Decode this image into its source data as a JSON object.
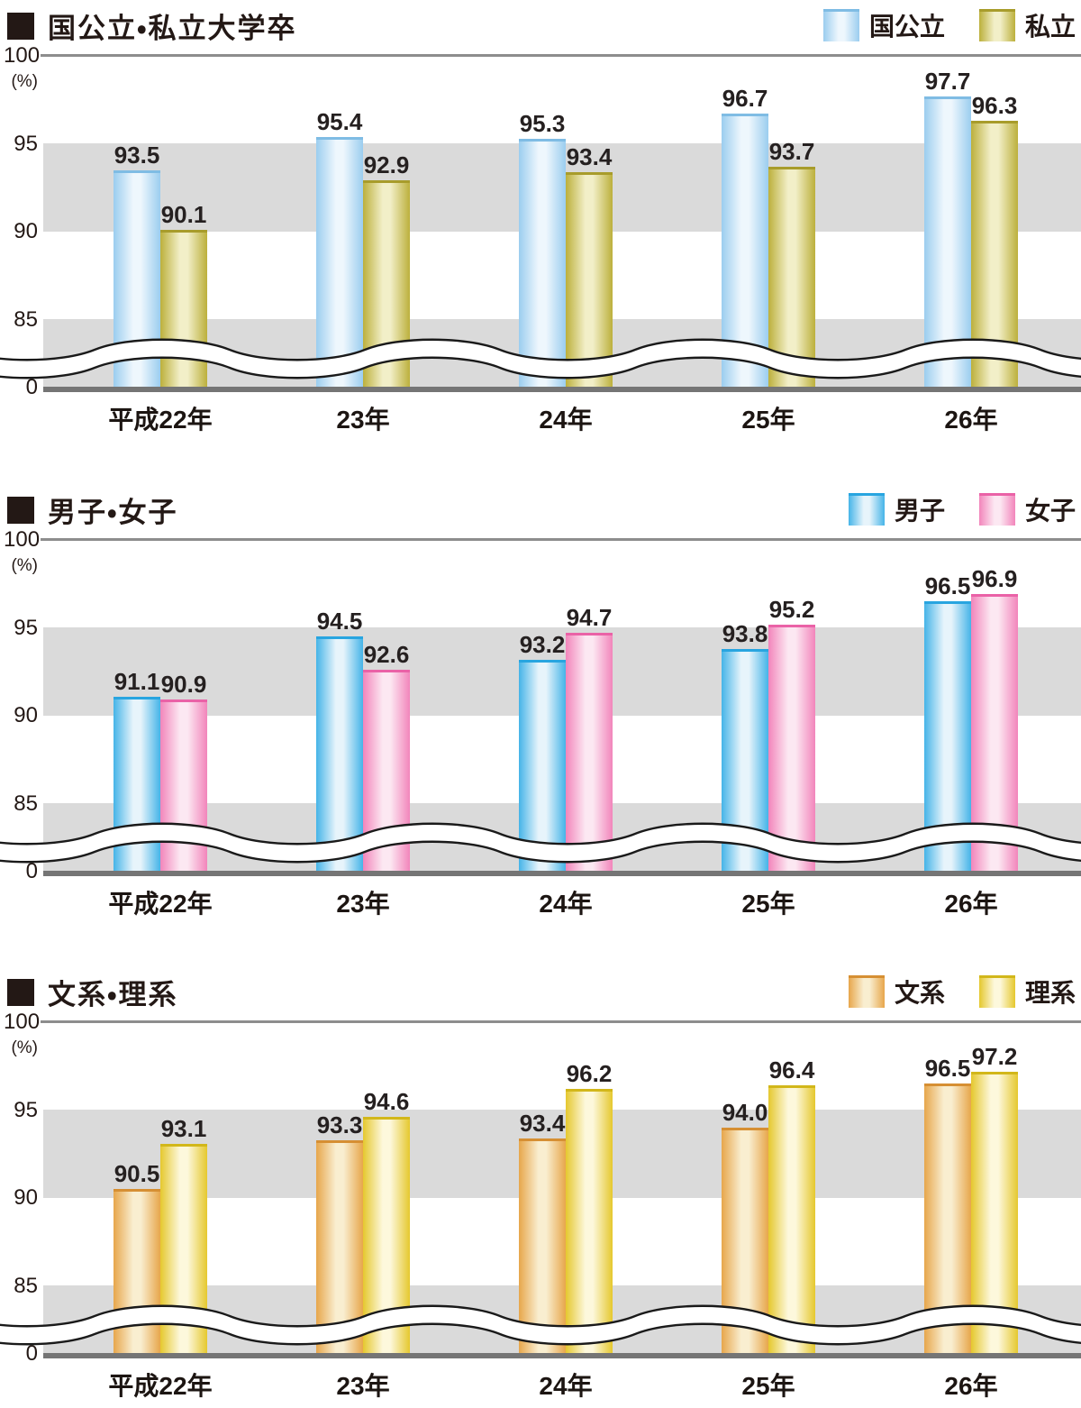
{
  "y_axis": {
    "max": "100",
    "unit": "(%)",
    "t95": "95",
    "t90": "90",
    "t85": "85",
    "zero": "0"
  },
  "style": {
    "band": "#dadada",
    "top_grid_line": "#8d8d8d",
    "zero_axis_line": "#757575",
    "text": "#231815"
  },
  "chart_data": [
    {
      "type": "bar",
      "title": "国公立・私立大学卒",
      "categories": [
        "平成22年",
        "23年",
        "24年",
        "25年",
        "26年"
      ],
      "series": [
        {
          "name": "国公立",
          "values": [
            93.5,
            95.4,
            95.3,
            96.7,
            97.7
          ],
          "colors": {
            "edge": "#9bcdef",
            "mid": "#eef7fd",
            "cap": "#7fbce4"
          }
        },
        {
          "name": "私立",
          "values": [
            90.1,
            92.9,
            93.4,
            93.7,
            96.3
          ],
          "colors": {
            "edge": "#bcb03c",
            "mid": "#f2efc8",
            "cap": "#a89c2b"
          }
        }
      ],
      "ylabel": "(%)",
      "ylim": [
        0,
        100
      ],
      "yticks": [
        0,
        85,
        90,
        95,
        100
      ],
      "axis_break_below": 85,
      "value_labels": true,
      "legend_position": "top-right"
    },
    {
      "type": "bar",
      "title": "男子・女子",
      "categories": [
        "平成22年",
        "23年",
        "24年",
        "25年",
        "26年"
      ],
      "series": [
        {
          "name": "男子",
          "values": [
            91.1,
            94.5,
            93.2,
            93.8,
            96.5
          ],
          "colors": {
            "edge": "#45b4e8",
            "mid": "#e7f4fb",
            "cap": "#28a5e0"
          }
        },
        {
          "name": "女子",
          "values": [
            90.9,
            92.6,
            94.7,
            95.2,
            96.9
          ],
          "colors": {
            "edge": "#f285bb",
            "mid": "#fce8f2",
            "cap": "#ea62a7"
          }
        }
      ],
      "ylabel": "(%)",
      "ylim": [
        0,
        100
      ],
      "yticks": [
        0,
        85,
        90,
        95,
        100
      ],
      "axis_break_below": 85,
      "value_labels": true,
      "legend_position": "top-right"
    },
    {
      "type": "bar",
      "title": "文系・理系",
      "categories": [
        "平成22年",
        "23年",
        "24年",
        "25年",
        "26年"
      ],
      "series": [
        {
          "name": "文系",
          "values": [
            90.5,
            93.3,
            93.4,
            94.0,
            96.5
          ],
          "colors": {
            "edge": "#e7a64b",
            "mid": "#f9eed0",
            "cap": "#d68f33"
          }
        },
        {
          "name": "理系",
          "values": [
            93.1,
            94.6,
            96.2,
            96.4,
            97.2
          ],
          "colors": {
            "edge": "#e5c82e",
            "mid": "#fdf8dc",
            "cap": "#d2b71a"
          }
        }
      ],
      "ylabel": "(%)",
      "ylim": [
        0,
        100
      ],
      "yticks": [
        0,
        85,
        90,
        95,
        100
      ],
      "axis_break_below": 85,
      "value_labels": true,
      "legend_position": "top-right"
    }
  ]
}
